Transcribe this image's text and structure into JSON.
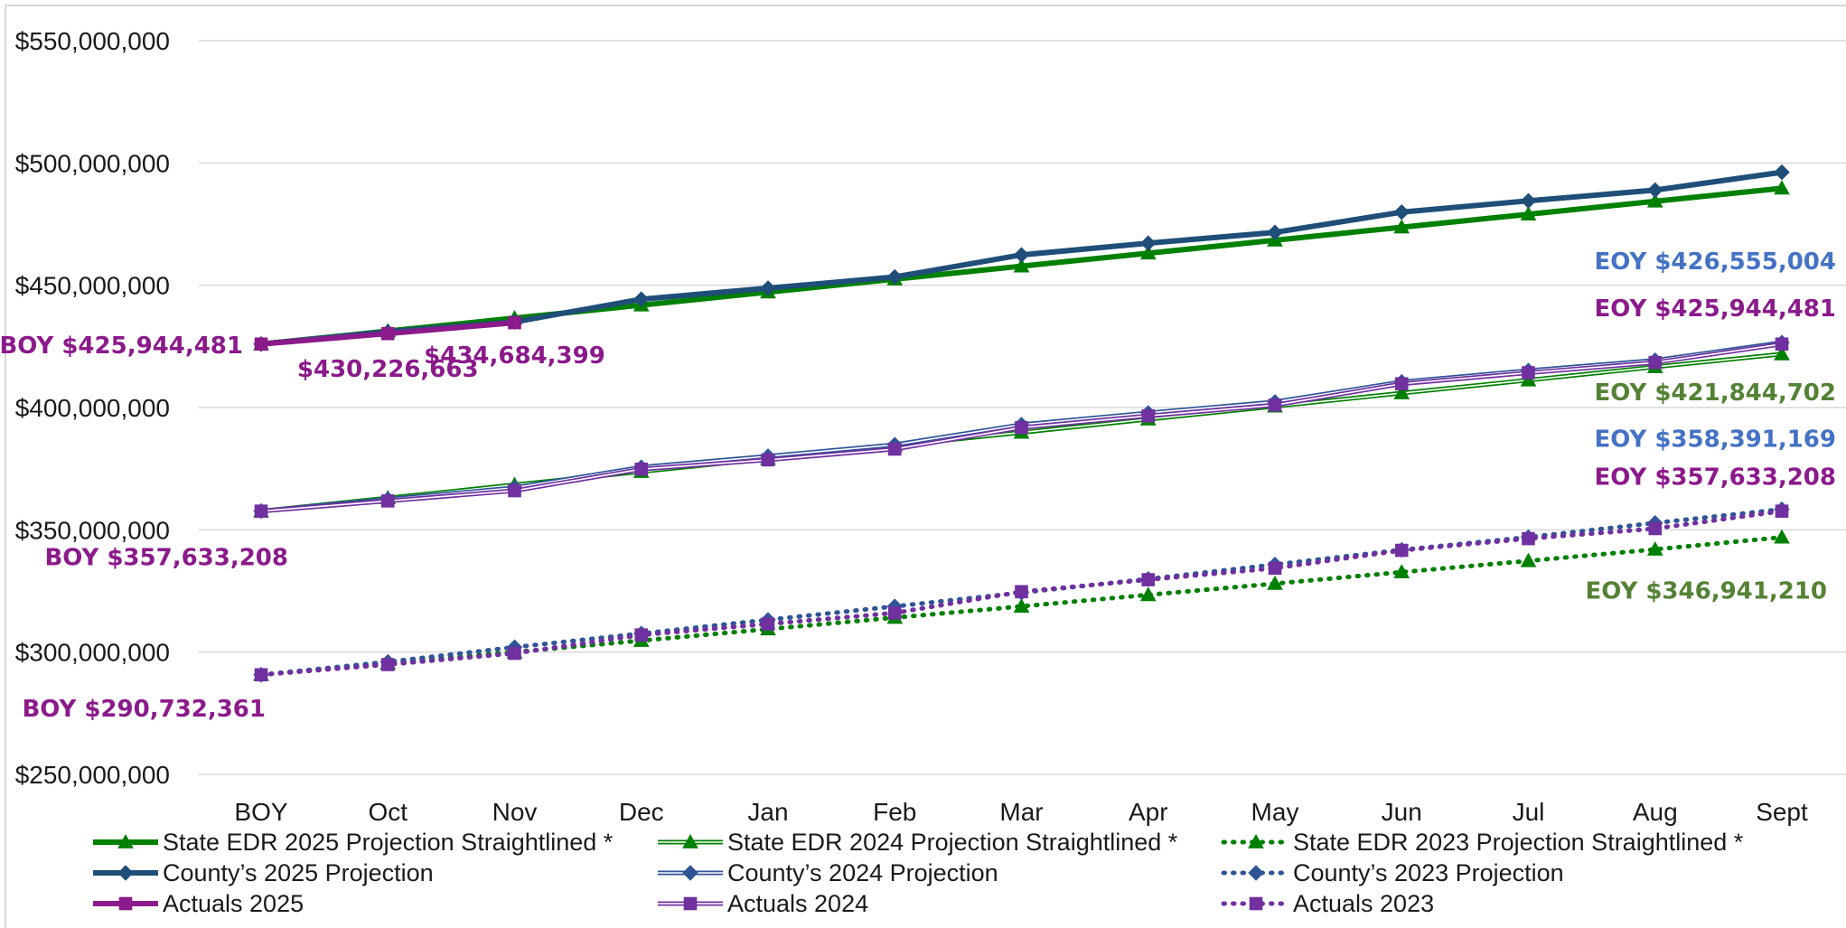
{
  "chart_data": {
    "type": "line",
    "title": "",
    "xlabel": "",
    "ylabel": "",
    "ylim": [
      250000000,
      550000000
    ],
    "yticks": [
      {
        "value": 550000000,
        "label": "$550,000,000"
      },
      {
        "value": 500000000,
        "label": "$500,000,000"
      },
      {
        "value": 450000000,
        "label": "$450,000,000"
      },
      {
        "value": 400000000,
        "label": "$400,000,000"
      },
      {
        "value": 350000000,
        "label": "$350,000,000"
      },
      {
        "value": 300000000,
        "label": "$300,000,000"
      },
      {
        "value": 250000000,
        "label": "$250,000,000"
      }
    ],
    "grid": true,
    "legend_position": "bottom",
    "categories": [
      "BOY",
      "Oct",
      "Nov",
      "Dec",
      "Jan",
      "Feb",
      "Mar",
      "Apr",
      "May",
      "Jun",
      "Jul",
      "Aug",
      "Sept"
    ],
    "series": [
      {
        "name": "State EDR 2025 Projection Straightlined *",
        "color": "#008000",
        "marker": "triangle",
        "style": "solid-thick",
        "values": [
          425944481,
          431252000,
          436560000,
          441868000,
          447176000,
          452484000,
          457792000,
          463100000,
          468408000,
          473716000,
          479024000,
          484332000,
          489640000
        ]
      },
      {
        "name": "State EDR 2024 Projection Straightlined *",
        "color": "#008000",
        "marker": "triangle",
        "style": "double",
        "values": [
          357633208,
          363000000,
          368400000,
          373800000,
          379100000,
          384500000,
          389800000,
          395200000,
          400500000,
          405900000,
          411200000,
          416600000,
          421844702
        ]
      },
      {
        "name": "State EDR 2023 Projection Straightlined *",
        "color": "#008000",
        "marker": "triangle",
        "style": "dotted",
        "values": [
          290732361,
          295400000,
          300000000,
          304700000,
          309400000,
          314100000,
          318700000,
          323400000,
          328000000,
          332700000,
          337300000,
          342000000,
          346941210
        ]
      },
      {
        "name": "County’s 2025 Projection",
        "color": "#1f4e79",
        "marker": "diamond",
        "style": "solid-thick",
        "values": [
          425944481,
          431000000,
          435000000,
          444300000,
          448800000,
          453400000,
          462400000,
          467200000,
          471600000,
          479900000,
          484500000,
          488900000,
          496200000
        ]
      },
      {
        "name": "County’s 2024 Projection",
        "color": "#2f5597",
        "marker": "diamond",
        "style": "double",
        "values": [
          357633208,
          362500000,
          367200000,
          375600000,
          380100000,
          384800000,
          393000000,
          397800000,
          402300000,
          410500000,
          415100000,
          419300000,
          426555004
        ]
      },
      {
        "name": "County’s 2023 Projection",
        "color": "#2f5597",
        "marker": "diamond",
        "style": "dotted",
        "values": [
          290732361,
          296000000,
          302000000,
          307600000,
          313200000,
          318700000,
          324300000,
          329900000,
          335800000,
          341800000,
          347000000,
          352800000,
          358391169
        ]
      },
      {
        "name": "Actuals 2025",
        "color": "#8b1a8b",
        "marker": "square",
        "style": "solid-thick",
        "values": [
          425944481,
          430226663,
          434684399,
          null,
          null,
          null,
          null,
          null,
          null,
          null,
          null,
          null,
          null
        ]
      },
      {
        "name": "Actuals 2024",
        "color": "#7030a0",
        "marker": "square",
        "style": "double",
        "values": [
          357633208,
          361800000,
          366000000,
          374800000,
          378600000,
          383000000,
          391800000,
          396600000,
          401000000,
          409700000,
          414200000,
          418400000,
          425944481
        ]
      },
      {
        "name": "Actuals 2023",
        "color": "#7030a0",
        "marker": "square",
        "style": "dotted",
        "values": [
          290732361,
          294900000,
          299500000,
          307000000,
          311500000,
          316000000,
          324700000,
          329600000,
          334300000,
          341600000,
          346400000,
          350500000,
          357633208
        ]
      }
    ],
    "annotations": [
      {
        "text": "BOY $425,944,481",
        "color": "#8b1a8b",
        "cat": 0,
        "value": 425944481,
        "align": "end",
        "dx": -20,
        "dy": 10
      },
      {
        "text": "$430,226,663",
        "color": "#8b1a8b",
        "cat": 1,
        "value": 430226663,
        "align": "middle",
        "dx": 0,
        "dy": 48
      },
      {
        "text": "$434,684,399",
        "color": "#8b1a8b",
        "cat": 2,
        "value": 434684399,
        "align": "middle",
        "dx": 0,
        "dy": 45
      },
      {
        "text": "BOY $357,633,208",
        "color": "#8b1a8b",
        "cat": 0,
        "value": 357633208,
        "align": "end",
        "dx": 30,
        "dy": 60
      },
      {
        "text": "BOY $290,732,361",
        "color": "#8b1a8b",
        "cat": 0,
        "value": 290732361,
        "align": "end",
        "dx": 5,
        "dy": 46
      },
      {
        "text": "EOY $426,555,004",
        "color": "#4472c4",
        "cat": 12,
        "value": 426555004,
        "align": "end",
        "dx": 60,
        "dy": -81
      },
      {
        "text": "EOY $425,944,481",
        "color": "#8b1a8b",
        "cat": 12,
        "value": 425944481,
        "align": "end",
        "dx": 60,
        "dy": -31
      },
      {
        "text": "EOY $421,844,702",
        "color": "#548235",
        "cat": 12,
        "value": 421844702,
        "align": "end",
        "dx": 60,
        "dy": 51
      },
      {
        "text": "EOY $358,391,169",
        "color": "#4472c4",
        "cat": 12,
        "value": 358391169,
        "align": "end",
        "dx": 60,
        "dy": -69
      },
      {
        "text": "EOY $357,633,208",
        "color": "#8b1a8b",
        "cat": 12,
        "value": 357633208,
        "align": "end",
        "dx": 60,
        "dy": -29
      },
      {
        "text": "EOY $346,941,210",
        "color": "#548235",
        "cat": 12,
        "value": 346941210,
        "align": "end",
        "dx": 50,
        "dy": 68
      }
    ]
  }
}
